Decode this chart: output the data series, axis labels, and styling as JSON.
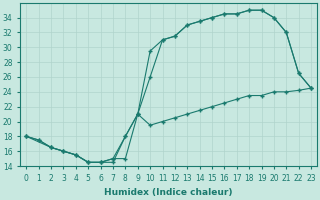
{
  "line1_x": [
    0,
    1,
    2,
    3,
    4,
    5,
    6,
    7,
    8,
    9,
    10,
    11,
    12,
    13,
    14,
    15,
    16,
    17,
    18,
    19,
    20,
    21,
    22,
    23
  ],
  "line1_y": [
    18,
    17.5,
    16.5,
    16,
    15.5,
    14.5,
    14.5,
    15,
    18,
    21,
    26,
    31,
    31.5,
    33,
    33.5,
    34,
    34.5,
    34.5,
    35,
    35,
    34,
    32,
    26.5,
    24.5
  ],
  "line2_x": [
    0,
    2,
    3,
    4,
    5,
    6,
    7,
    8,
    9,
    10,
    11,
    12,
    13,
    14,
    15,
    16,
    17,
    18,
    19,
    20,
    21,
    22,
    23
  ],
  "line2_y": [
    18,
    16.5,
    16,
    15.5,
    14.5,
    14.5,
    14.5,
    18,
    21,
    29.5,
    31,
    31.5,
    33,
    33.5,
    34,
    34.5,
    34.5,
    35,
    35,
    34,
    32,
    26.5,
    24.5
  ],
  "line3_x": [
    0,
    1,
    2,
    3,
    4,
    5,
    6,
    7,
    8,
    9,
    10,
    11,
    12,
    13,
    14,
    15,
    16,
    17,
    18,
    19,
    20,
    21,
    22,
    23
  ],
  "line3_y": [
    18,
    17.5,
    16.5,
    16,
    15.5,
    14.5,
    14.5,
    15,
    15,
    21,
    19.5,
    20,
    20.5,
    21,
    21.5,
    22,
    22.5,
    23,
    23.5,
    23.5,
    24,
    24,
    24.2,
    24.5
  ],
  "color": "#1a7a6e",
  "bg_color": "#c8e8e0",
  "grid_color": "#b0d4cc",
  "xlabel": "Humidex (Indice chaleur)",
  "ylim": [
    14,
    36
  ],
  "xlim": [
    -0.5,
    23.5
  ],
  "yticks": [
    14,
    16,
    18,
    20,
    22,
    24,
    26,
    28,
    30,
    32,
    34
  ],
  "xticks": [
    0,
    1,
    2,
    3,
    4,
    5,
    6,
    7,
    8,
    9,
    10,
    11,
    12,
    13,
    14,
    15,
    16,
    17,
    18,
    19,
    20,
    21,
    22,
    23
  ],
  "marker": "+",
  "markersize": 3.5,
  "linewidth": 0.8,
  "xlabel_fontsize": 6.5,
  "tick_fontsize": 5.5
}
